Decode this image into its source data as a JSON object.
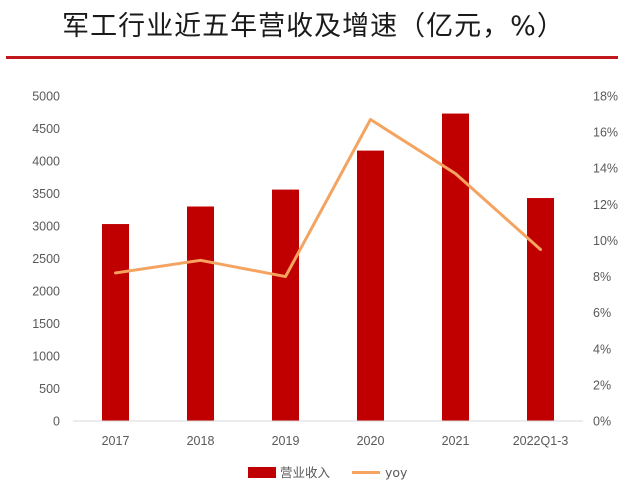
{
  "chart_data": {
    "type": "bar",
    "title": "军工行业近五年营收及增速（亿元，%）",
    "categories": [
      "2017",
      "2018",
      "2019",
      "2020",
      "2021",
      "2022Q1-3"
    ],
    "series": [
      {
        "name": "营业收入",
        "type": "bar",
        "axis": "left",
        "color": "#c00000",
        "values": [
          3030,
          3300,
          3560,
          4160,
          4730,
          3430
        ]
      },
      {
        "name": "yoy",
        "type": "line",
        "axis": "right",
        "color": "#f4a460",
        "values": [
          8.2,
          8.9,
          8.0,
          16.7,
          13.7,
          9.5
        ]
      }
    ],
    "y_left": {
      "min": 0,
      "max": 5000,
      "step": 500,
      "ticks": [
        "0",
        "500",
        "1000",
        "1500",
        "2000",
        "2500",
        "3000",
        "3500",
        "4000",
        "4500",
        "5000"
      ]
    },
    "y_right": {
      "min": 0,
      "max": 18,
      "step": 2,
      "ticks": [
        "0%",
        "2%",
        "4%",
        "6%",
        "8%",
        "10%",
        "12%",
        "14%",
        "16%",
        "18%"
      ]
    },
    "legend": {
      "position": "bottom",
      "bar_label": "营业收入",
      "line_label": "yoy"
    },
    "grid": false
  }
}
